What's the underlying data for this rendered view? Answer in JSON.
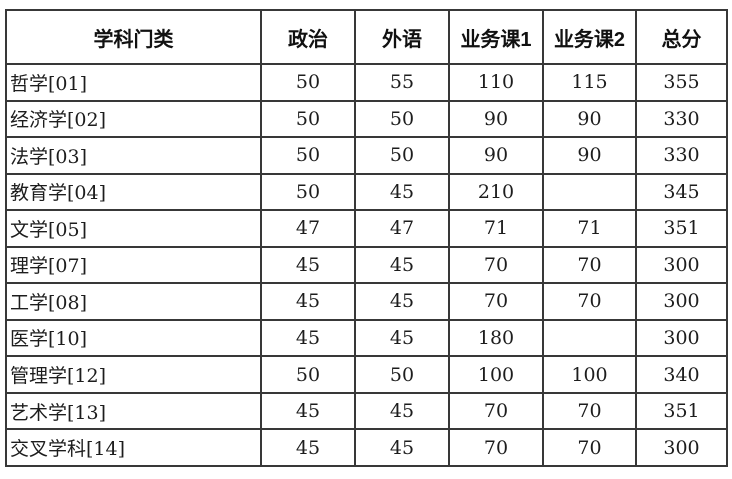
{
  "colors": {
    "border": "#383838",
    "text": "#1d1d1d",
    "header_text": "#111111",
    "background": "#ffffff"
  },
  "table": {
    "headers": [
      "学科门类",
      "政治",
      "外语",
      "业务课1",
      "业务课2",
      "总分"
    ],
    "rows": [
      {
        "label": "哲学[01]",
        "values": [
          "50",
          "55",
          "110",
          "115",
          "355"
        ]
      },
      {
        "label": "经济学[02]",
        "values": [
          "50",
          "50",
          "90",
          "90",
          "330"
        ]
      },
      {
        "label": "法学[03]",
        "values": [
          "50",
          "50",
          "90",
          "90",
          "330"
        ]
      },
      {
        "label": "教育学[04]",
        "values": [
          "50",
          "45",
          "210",
          "",
          "345"
        ]
      },
      {
        "label": "文学[05]",
        "values": [
          "47",
          "47",
          "71",
          "71",
          "351"
        ]
      },
      {
        "label": "理学[07]",
        "values": [
          "45",
          "45",
          "70",
          "70",
          "300"
        ]
      },
      {
        "label": "工学[08]",
        "values": [
          "45",
          "45",
          "70",
          "70",
          "300"
        ]
      },
      {
        "label": "医学[10]",
        "values": [
          "45",
          "45",
          "180",
          "",
          "300"
        ]
      },
      {
        "label": "管理学[12]",
        "values": [
          "50",
          "50",
          "100",
          "100",
          "340"
        ]
      },
      {
        "label": "艺术学[13]",
        "values": [
          "45",
          "45",
          "70",
          "70",
          "351"
        ]
      },
      {
        "label": "交叉学科[14]",
        "values": [
          "45",
          "45",
          "70",
          "70",
          "300"
        ]
      }
    ]
  }
}
